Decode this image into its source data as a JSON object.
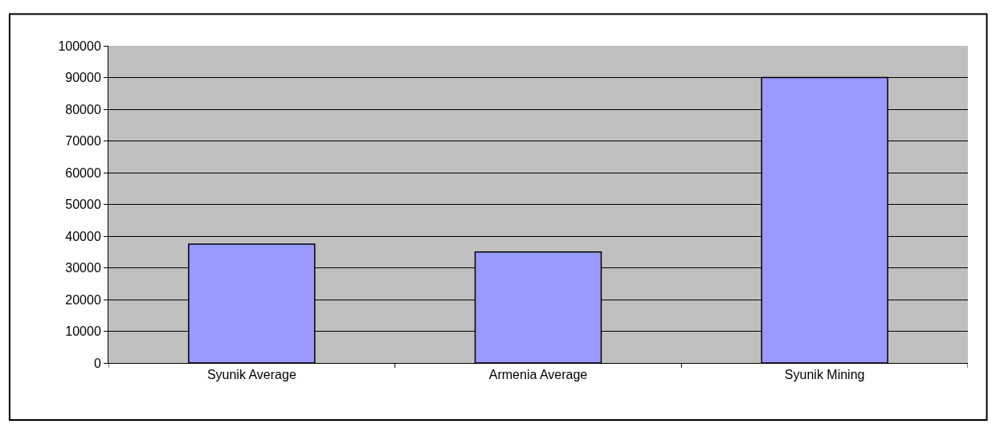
{
  "chart_data": {
    "type": "bar",
    "categories": [
      "Syunik Average",
      "Armenia Average",
      "Syunik Mining"
    ],
    "values": [
      37500,
      35000,
      90000
    ],
    "color": "#9999ff",
    "ylim": [
      0,
      100000
    ],
    "yticks": [
      0,
      10000,
      20000,
      30000,
      40000,
      50000,
      60000,
      70000,
      80000,
      90000,
      100000
    ],
    "grid": "y",
    "legend": false
  }
}
